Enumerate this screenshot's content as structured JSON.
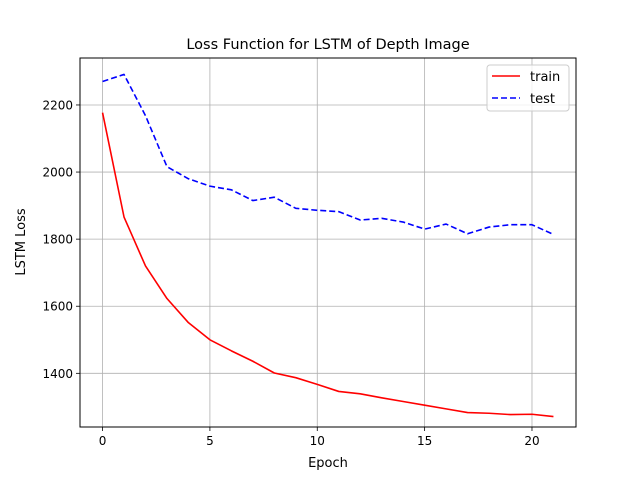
{
  "chart_data": {
    "type": "line",
    "title": "Loss Function for LSTM of Depth Image",
    "xlabel": "Epoch",
    "ylabel": "LSTM Loss",
    "xlim": [
      -1.05,
      22.05
    ],
    "ylim": [
      1240,
      2340
    ],
    "xticks": [
      0,
      5,
      10,
      15,
      20
    ],
    "yticks": [
      1400,
      1600,
      1800,
      2000,
      2200
    ],
    "grid": true,
    "legend_position": "top-right",
    "x": [
      0,
      1,
      2,
      3,
      4,
      5,
      6,
      7,
      8,
      9,
      10,
      11,
      12,
      13,
      14,
      15,
      16,
      17,
      18,
      19,
      20,
      21
    ],
    "series": [
      {
        "name": "train",
        "color": "#ff0000",
        "style": "solid",
        "values": [
          2177,
          1866,
          1720,
          1623,
          1551,
          1500,
          1467,
          1436,
          1401,
          1387,
          1367,
          1346,
          1339,
          1327,
          1316,
          1305,
          1294,
          1283,
          1281,
          1277,
          1278,
          1271
        ]
      },
      {
        "name": "test",
        "color": "#0000ff",
        "style": "dashed",
        "values": [
          2270,
          2291,
          2168,
          2016,
          1980,
          1958,
          1947,
          1915,
          1925,
          1892,
          1886,
          1882,
          1857,
          1862,
          1851,
          1830,
          1845,
          1816,
          1836,
          1843,
          1843,
          1814
        ]
      }
    ]
  }
}
